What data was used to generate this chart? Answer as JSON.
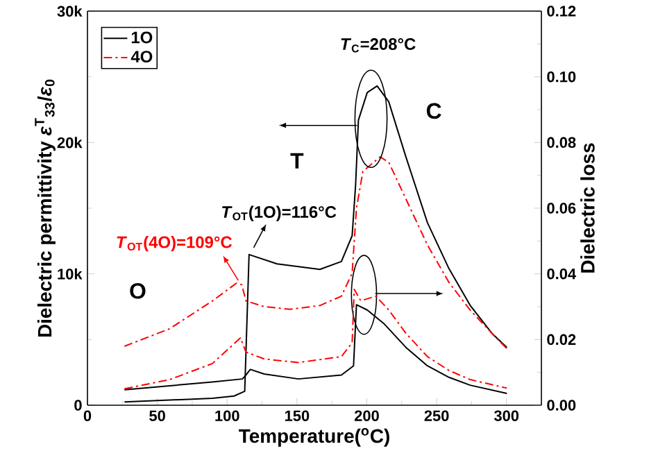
{
  "chart_data": {
    "type": "line",
    "xlabel": "Temperature($^{o}$C)",
    "ylabel": "Dielectric permittivity *ε*$^{T}$$_{33}$/*ε*$_{0}$",
    "y2label": "Dielectric loss",
    "xlim": [
      0,
      325
    ],
    "ylim": [
      0,
      30000
    ],
    "y2lim": [
      0,
      0.12
    ],
    "xticks": [
      0,
      50,
      100,
      150,
      200,
      250,
      300
    ],
    "yticks": [
      0,
      {
        "value": 10000,
        "label": "10k"
      },
      {
        "value": 20000,
        "label": "20k"
      },
      {
        "value": 30000,
        "label": "30k"
      }
    ],
    "y2ticks": [
      {
        "value": 0,
        "label": "0.00"
      },
      {
        "value": 0.02,
        "label": "0.02"
      },
      {
        "value": 0.04,
        "label": "0.04"
      },
      {
        "value": 0.06,
        "label": "0.06"
      },
      {
        "value": 0.08,
        "label": "0.08"
      },
      {
        "value": 0.1,
        "label": "0.10"
      },
      {
        "value": 0.12,
        "label": "0.12"
      }
    ],
    "legend": "top left",
    "annotations": [
      "*T*$_{C}$=208°C",
      "*T*$_{OT}$(1O)=116°C",
      "*T*$_{OT}$(4O)=109°C",
      "T",
      "C",
      "O"
    ],
    "series": [
      {
        "name": "1O",
        "color": "#000000",
        "line_style": "solid",
        "x": [
          26.5,
          89.5,
          105,
          112.6,
          115.7,
          135.7,
          166.4,
          181.8,
          189.5,
          192,
          194,
          200.3,
          207.4,
          215.7,
          228,
          243.4,
          258.8,
          274,
          289.6,
          300.3
        ],
        "values": [
          250,
          530,
          700,
          1060,
          11470,
          10760,
          10340,
          10940,
          12900,
          16800,
          21700,
          23800,
          24300,
          23100,
          18900,
          13900,
          10400,
          7600,
          5470,
          4400
        ]
      },
      {
        "name": "4O",
        "color": "#ff0000",
        "line_style": "dashdot",
        "x": [
          26.5,
          58.8,
          89.5,
          106.5,
          110.5,
          113.5,
          126.5,
          145,
          166.4,
          181.8,
          189.5,
          192.6,
          197.2,
          209.5,
          215.7,
          228,
          243.4,
          258.8,
          274,
          289.6,
          300.3
        ],
        "values": [
          4490,
          5820,
          7940,
          9280,
          9170,
          7940,
          7510,
          7300,
          7590,
          8300,
          10050,
          15000,
          17800,
          18900,
          18500,
          15700,
          12200,
          9350,
          7240,
          5470,
          4300
        ]
      },
      {
        "color": "#000000",
        "line_style": "solid",
        "axis": "y2",
        "x": [
          26.5,
          89.5,
          111,
          113.5,
          116.6,
          126.5,
          151,
          181.8,
          190.5,
          192.6,
          200.3,
          212.6,
          228,
          243.4,
          258.8,
          274,
          300.3
        ],
        "values": [
          0.0047,
          0.0071,
          0.008,
          0.0092,
          0.0109,
          0.0095,
          0.008,
          0.0092,
          0.012,
          0.0306,
          0.029,
          0.0247,
          0.0176,
          0.012,
          0.0085,
          0.0061,
          0.0036
        ]
      },
      {
        "color": "#ff0000",
        "line_style": "dashdot",
        "axis": "y2",
        "x": [
          26.5,
          58.8,
          89.5,
          109.5,
          113.5,
          126.5,
          151,
          181.8,
          189.5,
          191,
          195.7,
          206.5,
          215.7,
          228,
          243.4,
          258.8,
          274,
          300.3
        ],
        "values": [
          0.005,
          0.0078,
          0.0127,
          0.0205,
          0.0162,
          0.0141,
          0.013,
          0.0148,
          0.019,
          0.0353,
          0.0318,
          0.0332,
          0.029,
          0.0219,
          0.0148,
          0.0106,
          0.0078,
          0.0052
        ]
      }
    ]
  }
}
